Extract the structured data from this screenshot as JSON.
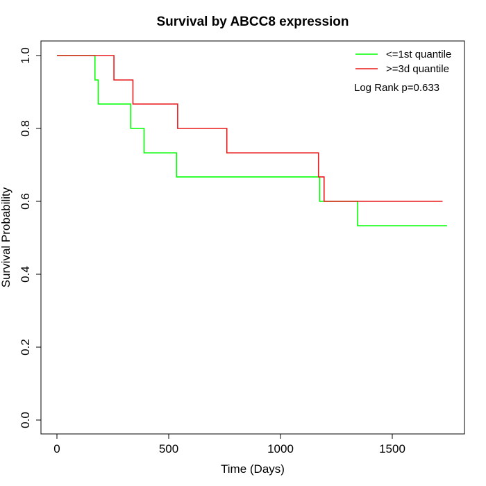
{
  "chart_data": {
    "type": "line",
    "title": "Survival by ABCC8 expression",
    "xlabel": "Time (Days)",
    "ylabel": "Survival Probability",
    "xlim": [
      0,
      1800
    ],
    "ylim": [
      0,
      1
    ],
    "x_ticks": [
      0,
      500,
      1000,
      1500
    ],
    "y_ticks": [
      0.0,
      0.2,
      0.4,
      0.6,
      0.8,
      1.0
    ],
    "x_tick_labels": [
      "0",
      "500",
      "1000",
      "1500"
    ],
    "y_tick_labels": [
      "0.0",
      "0.2",
      "0.4",
      "0.6",
      "0.8",
      "1.0"
    ],
    "grid": false,
    "legend_position": "top-right",
    "annotation": "Log Rank p=0.633",
    "series": [
      {
        "name": "<=1st quantile",
        "color": "#00ff00",
        "x": [
          0,
          170,
          185,
          330,
          390,
          535,
          1175,
          1345,
          1745
        ],
        "y": [
          1.0,
          0.933,
          0.867,
          0.8,
          0.733,
          0.667,
          0.6,
          0.533,
          0.533
        ]
      },
      {
        "name": ">=3d quantile",
        "color": "#e8191a",
        "x": [
          0,
          255,
          340,
          540,
          760,
          1170,
          1195,
          1725
        ],
        "y": [
          1.0,
          0.933,
          0.867,
          0.8,
          0.733,
          0.667,
          0.6,
          0.6
        ]
      }
    ]
  }
}
